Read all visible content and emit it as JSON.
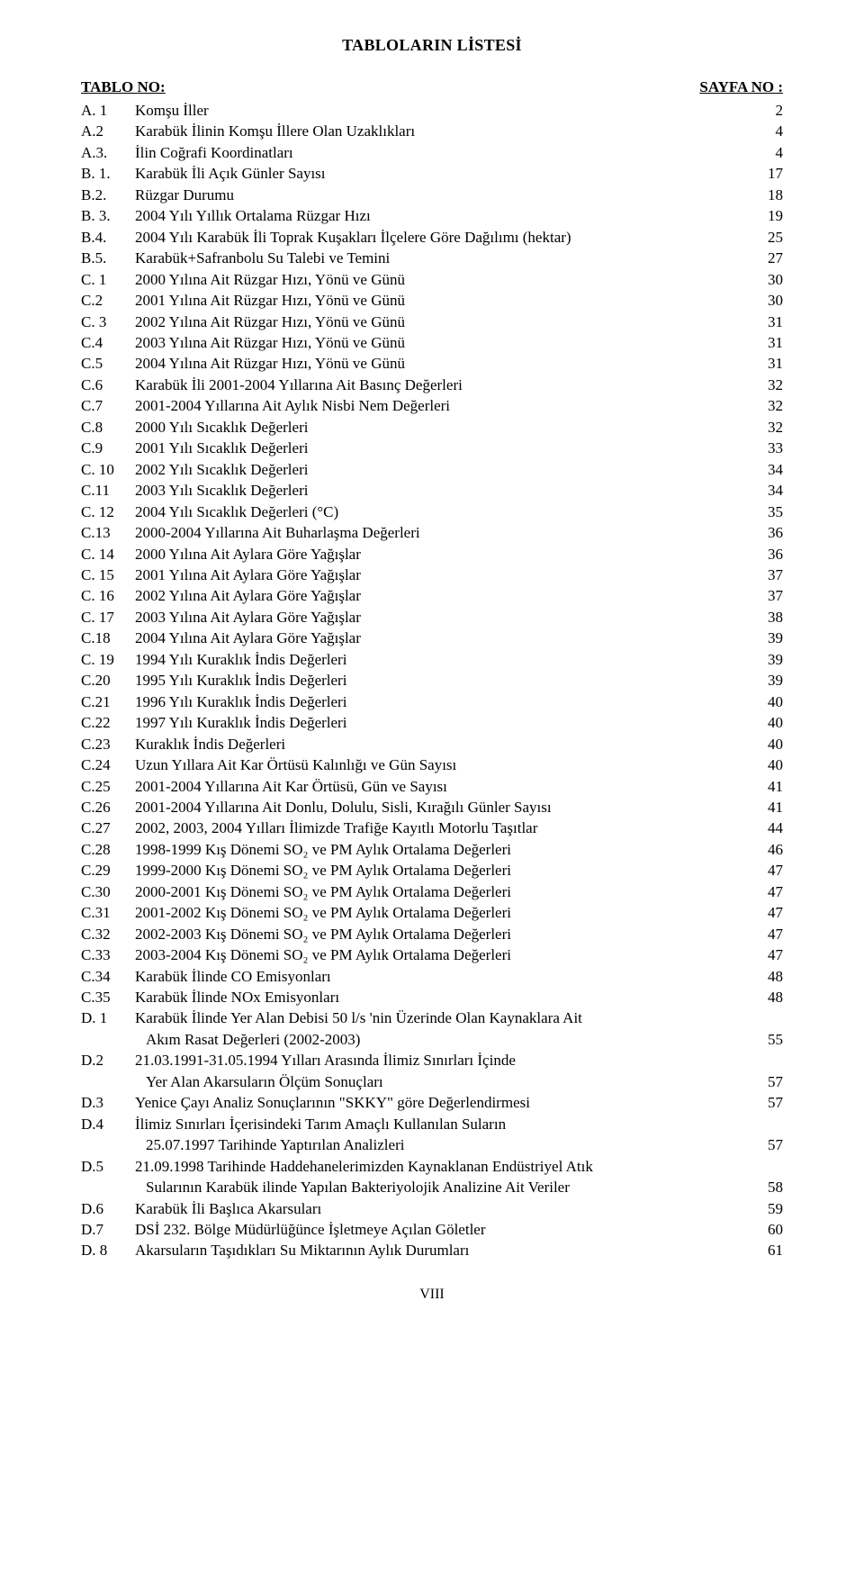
{
  "title": "TABLOLARIN LİSTESİ",
  "header": {
    "left": "TABLO NO:",
    "right": "SAYFA NO :"
  },
  "footer": "VIII",
  "entries": [
    {
      "id": "A. 1",
      "desc": "Komşu İller",
      "page": "2"
    },
    {
      "id": "A.2",
      "desc": "Karabük İlinin Komşu İllere Olan Uzaklıkları",
      "page": "4"
    },
    {
      "id": "A.3.",
      "desc": "İlin Coğrafi Koordinatları",
      "page": "4"
    },
    {
      "id": "B. 1.",
      "desc": "Karabük İli Açık Günler Sayısı",
      "page": "17"
    },
    {
      "id": "B.2.",
      "desc": "Rüzgar Durumu",
      "page": "18"
    },
    {
      "id": "B. 3.",
      "desc": "2004 Yılı Yıllık Ortalama Rüzgar Hızı",
      "page": "19"
    },
    {
      "id": "B.4.",
      "desc": "2004 Yılı Karabük İli Toprak Kuşakları İlçelere Göre Dağılımı (hektar)",
      "page": "25"
    },
    {
      "id": "B.5.",
      "desc": "Karabük+Safranbolu Su Talebi ve Temini",
      "page": "27"
    },
    {
      "id": "C. 1",
      "desc": "2000 Yılına Ait Rüzgar Hızı, Yönü ve Günü",
      "page": "30"
    },
    {
      "id": "C.2",
      "desc": "2001 Yılına Ait Rüzgar Hızı, Yönü ve Günü",
      "page": "30"
    },
    {
      "id": "C. 3",
      "desc": "2002 Yılına Ait Rüzgar Hızı, Yönü ve Günü",
      "page": "31"
    },
    {
      "id": "C.4",
      "desc": "2003 Yılına Ait Rüzgar Hızı, Yönü ve Günü",
      "page": "31"
    },
    {
      "id": "C.5",
      "desc": "2004 Yılına Ait Rüzgar Hızı, Yönü ve Günü",
      "page": "31"
    },
    {
      "id": "C.6",
      "desc": "Karabük İli 2001-2004 Yıllarına Ait Basınç Değerleri",
      "page": "32"
    },
    {
      "id": "C.7",
      "desc": "2001-2004 Yıllarına Ait Aylık Nisbi Nem Değerleri",
      "page": "32"
    },
    {
      "id": "C.8",
      "desc": "2000 Yılı Sıcaklık Değerleri",
      "page": "32"
    },
    {
      "id": "C.9",
      "desc": "2001 Yılı Sıcaklık Değerleri",
      "page": "33"
    },
    {
      "id": "C. 10",
      "desc": "2002 Yılı Sıcaklık Değerleri",
      "page": "34"
    },
    {
      "id": "C.11",
      "desc": "2003 Yılı Sıcaklık Değerleri",
      "page": "34"
    },
    {
      "id": "C. 12",
      "desc": "2004 Yılı Sıcaklık Değerleri (°C)",
      "page": "35"
    },
    {
      "id": "C.13",
      "desc": "2000-2004 Yıllarına Ait Buharlaşma Değerleri",
      "page": "36"
    },
    {
      "id": "C. 14",
      "desc": "2000 Yılına Ait Aylara Göre Yağışlar",
      "page": "36"
    },
    {
      "id": "C. 15",
      "desc": "2001 Yılına Ait Aylara Göre Yağışlar",
      "page": "37"
    },
    {
      "id": "C. 16",
      "desc": "2002 Yılına Ait Aylara Göre Yağışlar",
      "page": "37"
    },
    {
      "id": "C. 17",
      "desc": "2003 Yılına Ait Aylara Göre Yağışlar",
      "page": "38"
    },
    {
      "id": "C.18",
      "desc": "2004 Yılına Ait Aylara Göre Yağışlar",
      "page": "39"
    },
    {
      "id": "C. 19",
      "desc": "1994 Yılı Kuraklık İndis Değerleri",
      "page": "39"
    },
    {
      "id": "C.20",
      "desc": "1995 Yılı Kuraklık İndis Değerleri",
      "page": "39"
    },
    {
      "id": "C.21",
      "desc": "1996 Yılı Kuraklık İndis Değerleri",
      "page": "40"
    },
    {
      "id": "C.22",
      "desc": "1997 Yılı Kuraklık İndis Değerleri",
      "page": "40"
    },
    {
      "id": "C.23",
      "desc": "Kuraklık İndis Değerleri",
      "page": "40"
    },
    {
      "id": "C.24",
      "desc": "Uzun Yıllara Ait Kar Örtüsü Kalınlığı ve Gün Sayısı",
      "page": "40"
    },
    {
      "id": "C.25",
      "desc": "2001-2004 Yıllarına Ait Kar Örtüsü, Gün ve Sayısı",
      "page": "41"
    },
    {
      "id": "C.26",
      "desc": "2001-2004 Yıllarına Ait Donlu, Dolulu, Sisli, Kırağılı Günler Sayısı",
      "page": "41"
    },
    {
      "id": "C.27",
      "desc": "2002, 2003, 2004 Yılları İlimizde Trafiğe Kayıtlı Motorlu Taşıtlar",
      "page": "44"
    },
    {
      "id": "C.28",
      "desc": "1998-1999 Kış Dönemi SO₂ ve PM Aylık Ortalama Değerleri",
      "page": "46"
    },
    {
      "id": "C.29",
      "desc": "1999-2000 Kış Dönemi SO₂ ve PM Aylık Ortalama Değerleri",
      "page": "47"
    },
    {
      "id": "C.30",
      "desc": "2000-2001 Kış Dönemi SO₂ ve PM Aylık Ortalama Değerleri",
      "page": "47"
    },
    {
      "id": "C.31",
      "desc": "2001-2002 Kış Dönemi SO₂ ve PM Aylık Ortalama Değerleri",
      "page": "47"
    },
    {
      "id": "C.32",
      "desc": "2002-2003 Kış Dönemi SO₂ ve PM Aylık Ortalama Değerleri",
      "page": "47"
    },
    {
      "id": "C.33",
      "desc": "2003-2004 Kış Dönemi SO₂ ve PM Aylık Ortalama Değerleri",
      "page": "47"
    },
    {
      "id": "C.34",
      "desc": "Karabük İlinde CO Emisyonları",
      "page": "48"
    },
    {
      "id": "C.35",
      "desc": "Karabük İlinde NOx Emisyonları",
      "page": "48"
    },
    {
      "id": "D. 1",
      "desc": "Karabük İlinde Yer Alan Debisi 50 l/s 'nin Üzerinde Olan Kaynaklara Ait",
      "page": ""
    },
    {
      "id": "",
      "desc": " Akım Rasat Değerleri (2002-2003)",
      "page": "55",
      "sub": true
    },
    {
      "id": "D.2",
      "desc": "21.03.1991-31.05.1994 Yılları Arasında İlimiz Sınırları İçinde",
      "page": ""
    },
    {
      "id": "",
      "desc": "Yer Alan Akarsuların Ölçüm Sonuçları",
      "page": "57",
      "sub": true
    },
    {
      "id": "D.3",
      "desc": "Yenice Çayı Analiz Sonuçlarının \"SKKY\" göre Değerlendirmesi",
      "page": "57"
    },
    {
      "id": "D.4",
      "desc": "İlimiz Sınırları İçerisindeki Tarım Amaçlı Kullanılan Suların",
      "page": ""
    },
    {
      "id": "",
      "desc": " 25.07.1997 Tarihinde Yaptırılan Analizleri",
      "page": "57",
      "sub": true
    },
    {
      "id": "D.5",
      "desc": "21.09.1998 Tarihinde Haddehanelerimizden Kaynaklanan Endüstriyel Atık",
      "page": ""
    },
    {
      "id": "",
      "desc": " Sularının Karabük ilinde Yapılan Bakteriyolojik Analizine Ait Veriler",
      "page": "58",
      "sub": true
    },
    {
      "id": "D.6",
      "desc": "Karabük İli Başlıca Akarsuları",
      "page": "59"
    },
    {
      "id": "D.7",
      "desc": "DSİ 232. Bölge Müdürlüğünce İşletmeye Açılan Göletler",
      "page": "60"
    },
    {
      "id": "D. 8",
      "desc": "Akarsuların Taşıdıkları Su Miktarının Aylık Durumları",
      "page": "61"
    }
  ]
}
